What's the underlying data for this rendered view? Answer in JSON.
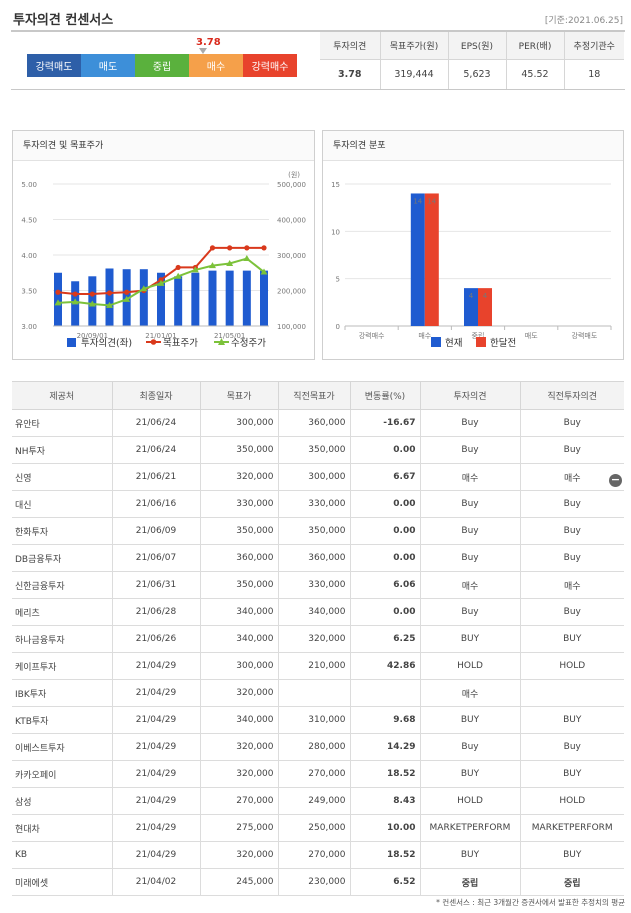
{
  "header": {
    "title": "투자의견 컨센서스",
    "date": "[기준:2021.06.25]"
  },
  "gauge": {
    "value": "3.78",
    "segments": [
      {
        "label": "강력매도",
        "color": "#2e5fa8"
      },
      {
        "label": "매도",
        "color": "#3d8fd9"
      },
      {
        "label": "중립",
        "color": "#5ab13d"
      },
      {
        "label": "매수",
        "color": "#f5a04a"
      },
      {
        "label": "강력매수",
        "color": "#e8432c"
      }
    ]
  },
  "consensus": {
    "headers": [
      "투자의견",
      "목표주가(원)",
      "EPS(원)",
      "PER(배)",
      "추정기관수"
    ],
    "values": [
      "3.78",
      "319,444",
      "5,623",
      "45.52",
      "18"
    ]
  },
  "panels": {
    "left_title": "투자의견 및 목표주가",
    "right_title": "투자의견 분포"
  },
  "chart_data": [
    {
      "type": "bar+line",
      "title": "투자의견 및 목표주가",
      "y_left_ticks": [
        "5.00",
        "4.50",
        "4.00",
        "3.50",
        "3.00"
      ],
      "y_left_range": [
        3.0,
        5.0
      ],
      "y_right_ticks": [
        "500,000",
        "400,000",
        "300,000",
        "200,000",
        "100,000"
      ],
      "y_right_range": [
        100000,
        500000
      ],
      "y_right_unit": "(원)",
      "x_ticks": [
        "20/09/01",
        "21/01/01",
        "21/05/01"
      ],
      "series": [
        {
          "name": "투자의견(좌)",
          "kind": "bar",
          "color": "#1f5bd0",
          "values": [
            3.75,
            3.63,
            3.7,
            3.81,
            3.8,
            3.8,
            3.75,
            3.7,
            3.75,
            3.78,
            3.78,
            3.78,
            3.78
          ]
        },
        {
          "name": "목표주가",
          "kind": "line",
          "color": "#d9391c",
          "values": [
            195000,
            190000,
            190000,
            193000,
            195000,
            200000,
            230000,
            265000,
            265000,
            320000,
            320000,
            320000,
            320000
          ]
        },
        {
          "name": "수정주가",
          "kind": "line",
          "color": "#7cc23a",
          "values": [
            165000,
            168000,
            162000,
            158000,
            175000,
            205000,
            220000,
            240000,
            258000,
            270000,
            276000,
            290000,
            252000
          ]
        }
      ]
    },
    {
      "type": "bar",
      "title": "투자의견 분포",
      "categories": [
        "강력매수",
        "매수",
        "중립",
        "매도",
        "강력매도"
      ],
      "y_ticks": [
        "15",
        "10",
        "5",
        "0"
      ],
      "ylim": [
        0,
        15
      ],
      "series": [
        {
          "name": "현재",
          "color": "#1f5bd0",
          "values": [
            0,
            14,
            4,
            0,
            0
          ]
        },
        {
          "name": "한달전",
          "color": "#e8432c",
          "values": [
            0,
            14,
            4,
            0,
            0
          ]
        }
      ],
      "labels": [
        "14",
        "14",
        "4",
        "4"
      ]
    }
  ],
  "broker_table": {
    "headers": [
      "제공처",
      "최종일자",
      "목표가",
      "직전목표가",
      "변동률(%)",
      "투자의견",
      "직전투자의견"
    ],
    "rows": [
      [
        "유안타",
        "21/06/24",
        "300,000",
        "360,000",
        "-16.67",
        "Buy",
        "Buy"
      ],
      [
        "NH투자",
        "21/06/24",
        "350,000",
        "350,000",
        "0.00",
        "Buy",
        "Buy"
      ],
      [
        "신영",
        "21/06/21",
        "320,000",
        "300,000",
        "6.67",
        "매수",
        "매수"
      ],
      [
        "대신",
        "21/06/16",
        "330,000",
        "330,000",
        "0.00",
        "Buy",
        "Buy"
      ],
      [
        "한화투자",
        "21/06/09",
        "350,000",
        "350,000",
        "0.00",
        "Buy",
        "Buy"
      ],
      [
        "DB금융투자",
        "21/06/07",
        "360,000",
        "360,000",
        "0.00",
        "Buy",
        "Buy"
      ],
      [
        "신한금융투자",
        "21/06/31",
        "350,000",
        "330,000",
        "6.06",
        "매수",
        "매수"
      ],
      [
        "메리츠",
        "21/06/28",
        "340,000",
        "340,000",
        "0.00",
        "Buy",
        "Buy"
      ],
      [
        "하나금융투자",
        "21/06/26",
        "340,000",
        "320,000",
        "6.25",
        "BUY",
        "BUY"
      ],
      [
        "케이프투자",
        "21/04/29",
        "300,000",
        "210,000",
        "42.86",
        "HOLD",
        "HOLD"
      ],
      [
        "IBK투자",
        "21/04/29",
        "320,000",
        "",
        "",
        "매수",
        ""
      ],
      [
        "KTB투자",
        "21/04/29",
        "340,000",
        "310,000",
        "9.68",
        "BUY",
        "BUY"
      ],
      [
        "이베스트투자",
        "21/04/29",
        "320,000",
        "280,000",
        "14.29",
        "Buy",
        "Buy"
      ],
      [
        "카카오페이",
        "21/04/29",
        "320,000",
        "270,000",
        "18.52",
        "BUY",
        "BUY"
      ],
      [
        "삼성",
        "21/04/29",
        "270,000",
        "249,000",
        "8.43",
        "HOLD",
        "HOLD"
      ],
      [
        "현대차",
        "21/04/29",
        "275,000",
        "250,000",
        "10.00",
        "MARKETPERFORM",
        "MARKETPERFORM"
      ],
      [
        "KB",
        "21/04/29",
        "320,000",
        "270,000",
        "18.52",
        "BUY",
        "BUY"
      ],
      [
        "미래에셋",
        "21/04/02",
        "245,000",
        "230,000",
        "6.52",
        "중립",
        "중립"
      ]
    ],
    "collapse_icon": "minus-circle-icon"
  },
  "footer": "* 컨센서스 : 최근 3개월간 증권사에서 발표한 추정치의 평균"
}
